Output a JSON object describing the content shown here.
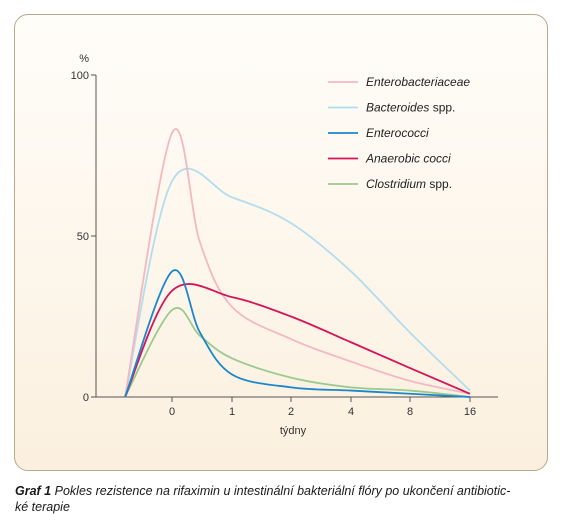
{
  "chart_data": {
    "type": "line",
    "ylabel": "%",
    "xlabel": "týdny",
    "ylim": [
      0,
      100
    ],
    "yticks": [
      "0",
      "50",
      "100"
    ],
    "x": [
      "0",
      "1",
      "2",
      "4",
      "8",
      "16"
    ],
    "legend_position": "top-right",
    "grid": false,
    "series": [
      {
        "name": "Enterobacteriaceae",
        "name_italic": "Enterobacteriaceae",
        "name_suffix": "",
        "color": "#f4b8c3",
        "points": [
          [
            "start",
            0
          ],
          [
            "0",
            82
          ],
          [
            "0.5",
            48
          ],
          [
            "1",
            28
          ],
          [
            "2",
            18
          ],
          [
            "4",
            11
          ],
          [
            "8",
            5
          ],
          [
            "16",
            1
          ]
        ]
      },
      {
        "name": "Bacteroides spp.",
        "name_italic": "Bacteroides",
        "name_suffix": " spp.",
        "color": "#b4dcef",
        "points": [
          [
            "start",
            0
          ],
          [
            "0",
            67
          ],
          [
            "1",
            62
          ],
          [
            "2",
            54
          ],
          [
            "4",
            39
          ],
          [
            "8",
            20
          ],
          [
            "16",
            2
          ]
        ]
      },
      {
        "name": "Enterococci",
        "name_italic": "Enterococci",
        "name_suffix": "",
        "color": "#1a86cc",
        "points": [
          [
            "start",
            0
          ],
          [
            "0",
            39
          ],
          [
            "0.5",
            20
          ],
          [
            "1",
            7
          ],
          [
            "2",
            3
          ],
          [
            "4",
            2
          ],
          [
            "8",
            1
          ],
          [
            "16",
            0
          ]
        ]
      },
      {
        "name": "Anaerobic cocci",
        "name_italic": "Anaerobic cocci",
        "name_suffix": "",
        "color": "#d4145a",
        "points": [
          [
            "start",
            0
          ],
          [
            "0",
            33
          ],
          [
            "1",
            31
          ],
          [
            "2",
            25
          ],
          [
            "4",
            17
          ],
          [
            "8",
            9
          ],
          [
            "16",
            1
          ]
        ]
      },
      {
        "name": "Clostridium spp.",
        "name_italic": "Clostridium",
        "name_suffix": " spp.",
        "color": "#9cc98e",
        "points": [
          [
            "start",
            0
          ],
          [
            "0",
            27
          ],
          [
            "0.5",
            19
          ],
          [
            "1",
            12
          ],
          [
            "2",
            6
          ],
          [
            "4",
            3
          ],
          [
            "8",
            2
          ],
          [
            "16",
            0
          ]
        ]
      }
    ]
  },
  "caption": {
    "label": "Graf 1",
    "text": "Pokles rezistence na rifaximin u intestinální bakteriální flóry po ukončení antibiotic-",
    "text2": "ké terapie"
  }
}
